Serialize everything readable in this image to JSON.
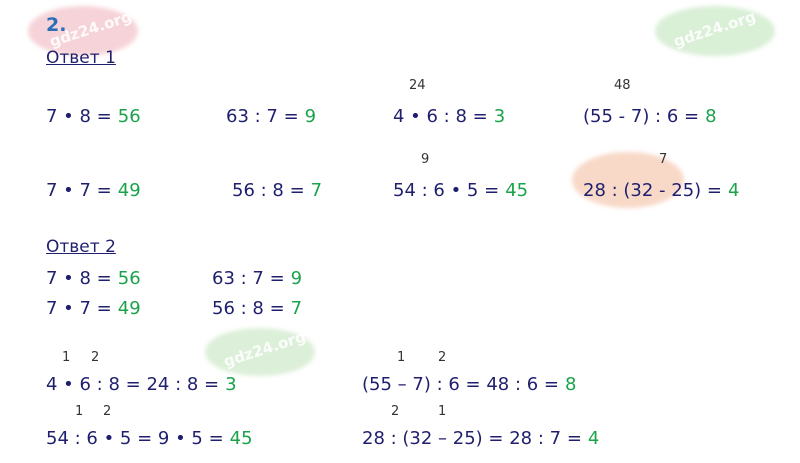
{
  "number": "2.",
  "answer1": {
    "label": "Ответ 1",
    "items": [
      {
        "expr": "7 • 8 =",
        "result": "56"
      },
      {
        "expr": "63 : 7 =",
        "result": "9"
      },
      {
        "expr": "4 • 6 : 8 =",
        "result": "3",
        "note": "24"
      },
      {
        "expr": "(55 - 7) : 6 =",
        "result": "8",
        "note": "48"
      },
      {
        "expr": "7 • 7 =",
        "result": "49"
      },
      {
        "expr": "56 : 8 =",
        "result": "7"
      },
      {
        "expr": "54 : 6 • 5 =",
        "result": "45",
        "note": "9"
      },
      {
        "expr": "28 : (32 - 25) =",
        "result": "4",
        "note": "7"
      }
    ]
  },
  "answer2": {
    "label": "Ответ 2",
    "items": [
      {
        "expr": "7 • 8 =",
        "result": "56"
      },
      {
        "expr": "63 : 7 =",
        "result": "9"
      },
      {
        "expr": "7 • 7 =",
        "result": "49"
      },
      {
        "expr": "56 : 8 =",
        "result": "7"
      }
    ],
    "steps": [
      {
        "expr": "4 • 6 : 8 = 24 : 8 =",
        "result": "3",
        "order": [
          "1",
          "2"
        ]
      },
      {
        "expr": "(55 – 7) : 6 = 48 : 6 =",
        "result": "8",
        "order": [
          "1",
          "2"
        ]
      },
      {
        "expr": "54 : 6 • 5 = 9 • 5 =",
        "result": "45",
        "order": [
          "1",
          "2"
        ]
      },
      {
        "expr": "28 : (32 – 25) = 28 : 7 =",
        "result": "4",
        "order": [
          "2",
          "1"
        ]
      }
    ]
  },
  "watermarks": [
    "gdz24.org",
    "gdz24.org",
    "gdz24.org"
  ]
}
